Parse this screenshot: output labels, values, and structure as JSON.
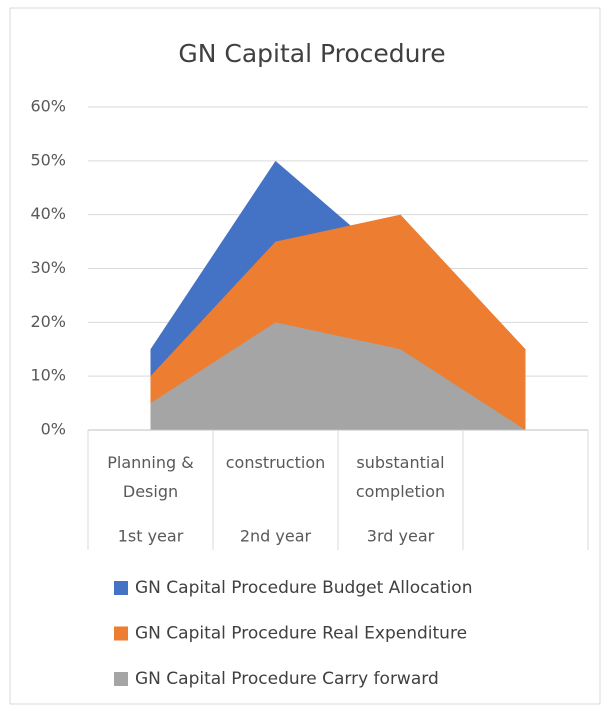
{
  "chart_data": {
    "type": "area",
    "title": "GN Capital Procedure",
    "categories": [
      "Planning & Design",
      "construction",
      "substantial completion",
      null
    ],
    "category_groups": [
      "1st year",
      "2nd year",
      "3rd year",
      null
    ],
    "series": [
      {
        "name": "GN Capital Procedure Budget Allocation",
        "color": "#4472c4",
        "values": [
          15,
          50,
          30,
          15
        ]
      },
      {
        "name": "GN Capital Procedure Real Expenditure",
        "color": "#ed7d31",
        "values": [
          10,
          35,
          40,
          15
        ]
      },
      {
        "name": "GN Capital Procedure Carry forward",
        "color": "#a5a5a5",
        "values": [
          5,
          20,
          15,
          0
        ]
      }
    ],
    "ylim": [
      0,
      60
    ],
    "yticks": [
      {
        "value": 0,
        "label": "0%"
      },
      {
        "value": 10,
        "label": "10%"
      },
      {
        "value": 20,
        "label": "20%"
      },
      {
        "value": 30,
        "label": "30%"
      },
      {
        "value": 40,
        "label": "40%"
      },
      {
        "value": 50,
        "label": "50%"
      },
      {
        "value": 60,
        "label": "60%"
      }
    ],
    "grid": true,
    "legend": "bottom"
  }
}
